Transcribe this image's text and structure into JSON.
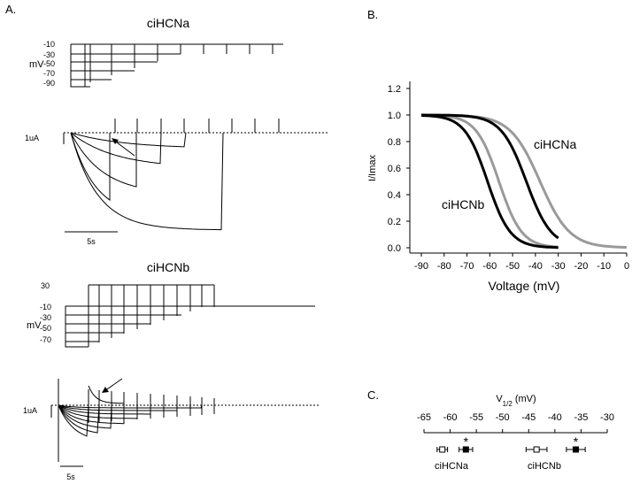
{
  "panel_labels": {
    "a": "A.",
    "b": "B.",
    "c": "C."
  },
  "panel_a": {
    "top": {
      "title": "ciHCNa",
      "unit": "mV",
      "levels": [
        "-10",
        "-30",
        "-50",
        "-70",
        "-90"
      ],
      "current_scale": "1uA",
      "time_scale": "5s"
    },
    "bottom": {
      "title": "ciHCNb",
      "unit": "mV",
      "hold_label": "30",
      "levels": [
        "-10",
        "-30",
        "-50",
        "-70"
      ],
      "current_scale": "1uA",
      "time_scale": "5s"
    }
  },
  "chart_data": [
    {
      "type": "line",
      "panel": "B",
      "xlabel": "Voltage (mV)",
      "ylabel": "I/Imax",
      "xlim": [
        -90,
        0
      ],
      "ylim": [
        0,
        1.2
      ],
      "x_ticks": [
        -90,
        -80,
        -70,
        -60,
        -50,
        -40,
        -30,
        -20,
        -10,
        0
      ],
      "y_ticks": [
        "0.0",
        "0.2",
        "0.4",
        "0.6",
        "0.8",
        "1.0",
        "1.2"
      ],
      "grid": false,
      "annotations": [
        "ciHCNa",
        "ciHCNb"
      ],
      "series": [
        {
          "color": "#9a9a9a",
          "v_half": -38,
          "slope": 6.5,
          "x_range": [
            -90,
            0
          ]
        },
        {
          "color": "#9a9a9a",
          "v_half": -56,
          "slope": 5.0,
          "x_range": [
            -90,
            -30
          ]
        },
        {
          "color": "#000000",
          "v_half": -44,
          "slope": 5.5,
          "x_range": [
            -90,
            -30
          ]
        },
        {
          "color": "#000000",
          "v_half": -61,
          "slope": 5.0,
          "x_range": [
            -90,
            -30
          ]
        }
      ]
    },
    {
      "type": "scatter",
      "panel": "C",
      "xlabel": "V1/2 (mV)",
      "xlabel_main": "V",
      "xlabel_sub": "1/2",
      "xlabel_unit": " (mV)",
      "xlim": [
        -65,
        -30
      ],
      "x_ticks": [
        -65,
        -60,
        -55,
        -50,
        -45,
        -40,
        -35,
        -30
      ],
      "group_labels": [
        "ciHCNa",
        "ciHCNb"
      ],
      "points": [
        {
          "x": -61.5,
          "err": 1.0,
          "filled": false,
          "star": false
        },
        {
          "x": -57.0,
          "err": 1.3,
          "filled": true,
          "star": true
        },
        {
          "x": -43.5,
          "err": 2.0,
          "filled": false,
          "star": false
        },
        {
          "x": -36.0,
          "err": 1.8,
          "filled": true,
          "star": true
        }
      ],
      "star_symbol": "*"
    }
  ]
}
